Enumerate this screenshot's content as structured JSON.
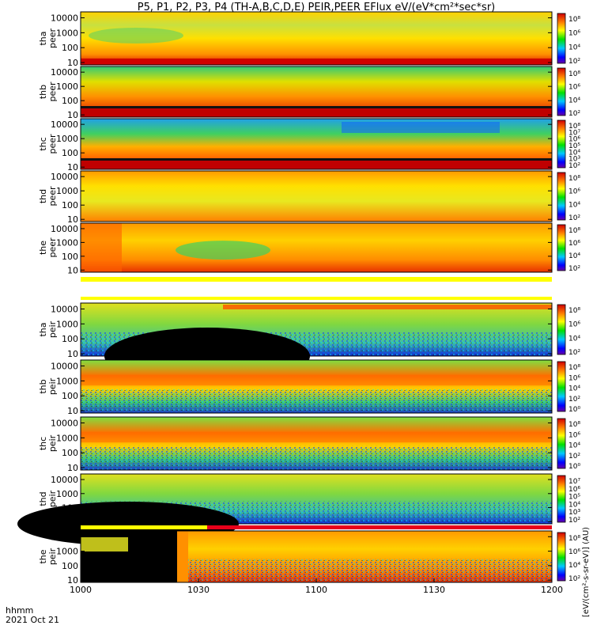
{
  "title": "P5, P1, P2, P3, P4 (TH-A,B,C,D,E) PEIR,PEER EFlux eV/(eV*cm²*sec*sr)",
  "colorbar_label": "[eV/(cm²-s-sr-eV)] (AU)",
  "time_label": "hhmm",
  "date_label": "2021 Oct 21",
  "colors": {
    "frame": "#000000",
    "yellow_bar": "#ffff00",
    "red_bar": "#e8001a"
  },
  "chart_data": {
    "type": "heatmap",
    "x_axis": {
      "label": "hhmm",
      "range": [
        "1000",
        "1200"
      ],
      "ticks": [
        "1000",
        "1030",
        "1100",
        "1130",
        "1200"
      ]
    },
    "y_ticks": [
      "10",
      "100",
      "1000",
      "10000"
    ],
    "panels": [
      {
        "label": "tha peer",
        "line1": "tha",
        "line2": "peer",
        "cbar_ticks": [
          "10⁸",
          "10⁶",
          "10⁴",
          "10²"
        ]
      },
      {
        "label": "thb peer",
        "line1": "thb",
        "line2": "peer",
        "cbar_ticks": [
          "10⁸",
          "10⁶",
          "10⁴",
          "10²"
        ]
      },
      {
        "label": "thc peer",
        "line1": "thc",
        "line2": "peer",
        "cbar_ticks": [
          "10⁸",
          "10⁷",
          "10⁶",
          "10⁵",
          "10⁴",
          "10³",
          "10²"
        ]
      },
      {
        "label": "thd peer",
        "line1": "thd",
        "line2": "peer",
        "cbar_ticks": [
          "10⁸",
          "10⁶",
          "10⁴",
          "10²"
        ]
      },
      {
        "label": "the peer",
        "line1": "the",
        "line2": "peer",
        "cbar_ticks": [
          "10⁸",
          "10⁶",
          "10⁴",
          "10²"
        ]
      },
      {
        "label": "tha peir",
        "line1": "tha",
        "line2": "peir",
        "cbar_ticks": [
          "10⁸",
          "10⁶",
          "10⁴",
          "10²"
        ]
      },
      {
        "label": "thb peir",
        "line1": "thb",
        "line2": "peir",
        "cbar_ticks": [
          "10⁸",
          "10⁶",
          "10⁴",
          "10²",
          "10⁰"
        ]
      },
      {
        "label": "thc peir",
        "line1": "thc",
        "line2": "peir",
        "cbar_ticks": [
          "10⁸",
          "10⁶",
          "10⁴",
          "10²",
          "10⁰"
        ]
      },
      {
        "label": "thd peir",
        "line1": "thd",
        "line2": "peir",
        "cbar_ticks": [
          "10⁷",
          "10⁶",
          "10⁵",
          "10⁴",
          "10³",
          "10²"
        ]
      },
      {
        "label": "the peir",
        "line1": "the",
        "line2": "peir",
        "cbar_ticks": [
          "10⁸",
          "10⁶",
          "10⁴",
          "10²"
        ]
      }
    ]
  }
}
